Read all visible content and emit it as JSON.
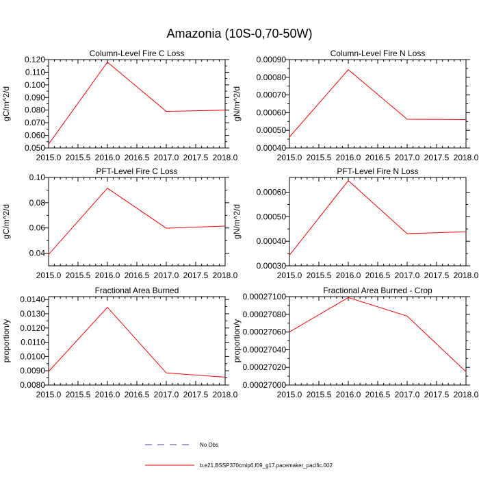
{
  "page_title": "Amazonia (10S-0,70-50W)",
  "colors": {
    "model_line": "#ff0000",
    "obs_line": "#4b3fa0",
    "axis": "#000000"
  },
  "legend": {
    "obs_label": "No Obs",
    "model_label": "b.e21.BSSP370cmip6.f09_g17.pacemaker_pacific.002"
  },
  "chart_data": [
    {
      "type": "line",
      "title": "Column-Level Fire C Loss",
      "xlabel": "",
      "ylabel": "gC/m^2/d",
      "x": [
        2015,
        2016,
        2017,
        2018
      ],
      "series": [
        {
          "name": "b.e21.BSSP370cmip6.f09_g17.pacemaker_pacific.002",
          "values": [
            0.053,
            0.118,
            0.079,
            0.08
          ]
        }
      ],
      "xlim": [
        2015,
        2018
      ],
      "ylim": [
        0.05,
        0.12
      ],
      "xticks": [
        "2015.0",
        "2015.5",
        "2016.0",
        "2016.5",
        "2017.0",
        "2017.5",
        "2018.0"
      ],
      "yticks": [
        "0.050",
        "0.060",
        "0.070",
        "0.080",
        "0.090",
        "0.100",
        "0.110",
        "0.120"
      ],
      "yticks_values": [
        0.05,
        0.06,
        0.07,
        0.08,
        0.09,
        0.1,
        0.11,
        0.12
      ]
    },
    {
      "type": "line",
      "title": "Column-Level Fire N Loss",
      "xlabel": "",
      "ylabel": "gN/m^2/d",
      "x": [
        2015,
        2016,
        2017,
        2018
      ],
      "series": [
        {
          "name": "b.e21.BSSP370cmip6.f09_g17.pacemaker_pacific.002",
          "values": [
            0.000462,
            0.000843,
            0.000563,
            0.000561
          ]
        }
      ],
      "xlim": [
        2015,
        2018
      ],
      "ylim": [
        0.0004,
        0.0009
      ],
      "xticks": [
        "2015.0",
        "2015.5",
        "2016.0",
        "2016.5",
        "2017.0",
        "2017.5",
        "2018.0"
      ],
      "yticks": [
        "0.00040",
        "0.00050",
        "0.00060",
        "0.00070",
        "0.00080",
        "0.00090"
      ],
      "yticks_values": [
        0.0004,
        0.0005,
        0.0006,
        0.0007,
        0.0008,
        0.0009
      ]
    },
    {
      "type": "line",
      "title": "PFT-Level Fire C Loss",
      "xlabel": "",
      "ylabel": "gC/m^2/d",
      "x": [
        2015,
        2016,
        2017,
        2018
      ],
      "series": [
        {
          "name": "b.e21.BSSP370cmip6.f09_g17.pacemaker_pacific.002",
          "values": [
            0.039,
            0.0915,
            0.0598,
            0.0615
          ]
        }
      ],
      "xlim": [
        2015,
        2018
      ],
      "ylim": [
        0.03,
        0.1
      ],
      "xticks": [
        "2015.0",
        "2015.5",
        "2016.0",
        "2016.5",
        "2017.0",
        "2017.5",
        "2018.0"
      ],
      "yticks": [
        "0.04",
        "0.06",
        "0.08",
        "0.10"
      ],
      "yticks_values": [
        0.04,
        0.06,
        0.08,
        0.1
      ]
    },
    {
      "type": "line",
      "title": "PFT-Level Fire N Loss",
      "xlabel": "",
      "ylabel": "gN/m^2/d",
      "x": [
        2015,
        2016,
        2017,
        2018
      ],
      "series": [
        {
          "name": "b.e21.BSSP370cmip6.f09_g17.pacemaker_pacific.002",
          "values": [
            0.000343,
            0.000647,
            0.000431,
            0.000439
          ]
        }
      ],
      "xlim": [
        2015,
        2018
      ],
      "ylim": [
        0.0003,
        0.00066
      ],
      "xticks": [
        "2015.0",
        "2015.5",
        "2016.0",
        "2016.5",
        "2017.0",
        "2017.5",
        "2018.0"
      ],
      "yticks": [
        "0.00030",
        "0.00040",
        "0.00050",
        "0.00060"
      ],
      "yticks_values": [
        0.0003,
        0.0004,
        0.0005,
        0.0006
      ]
    },
    {
      "type": "line",
      "title": "Fractional Area Burned",
      "xlabel": "",
      "ylabel": "proportion/y",
      "x": [
        2015,
        2016,
        2017,
        2018
      ],
      "series": [
        {
          "name": "b.e21.BSSP370cmip6.f09_g17.pacemaker_pacific.002",
          "values": [
            0.00895,
            0.01345,
            0.00885,
            0.00855
          ]
        }
      ],
      "xlim": [
        2015,
        2018
      ],
      "ylim": [
        0.008,
        0.0142
      ],
      "xticks": [
        "2015.0",
        "2015.5",
        "2016.0",
        "2016.5",
        "2017.0",
        "2017.5",
        "2018.0"
      ],
      "yticks": [
        "0.0080",
        "0.0090",
        "0.0100",
        "0.0110",
        "0.0120",
        "0.0130",
        "0.0140"
      ],
      "yticks_values": [
        0.008,
        0.009,
        0.01,
        0.011,
        0.012,
        0.013,
        0.014
      ]
    },
    {
      "type": "line",
      "title": "Fractional Area Burned - Crop",
      "xlabel": "",
      "ylabel": "proportion/y",
      "x": [
        2015,
        2016,
        2017,
        2018
      ],
      "series": [
        {
          "name": "b.e21.BSSP370cmip6.f09_g17.pacemaker_pacific.002",
          "values": [
            0.0002706,
            0.00027099,
            0.00027078,
            0.00027015
          ]
        }
      ],
      "xlim": [
        2015,
        2018
      ],
      "ylim": [
        0.00027,
        0.000271
      ],
      "xticks": [
        "2015.0",
        "2015.5",
        "2016.0",
        "2016.5",
        "2017.0",
        "2017.5",
        "2018.0"
      ],
      "yticks": [
        "0.00027000",
        "0.00027020",
        "0.00027040",
        "0.00027060",
        "0.00027080",
        "0.00027100"
      ],
      "yticks_values": [
        0.00027,
        0.0002702,
        0.0002704,
        0.0002706,
        0.0002708,
        0.000271
      ]
    }
  ]
}
